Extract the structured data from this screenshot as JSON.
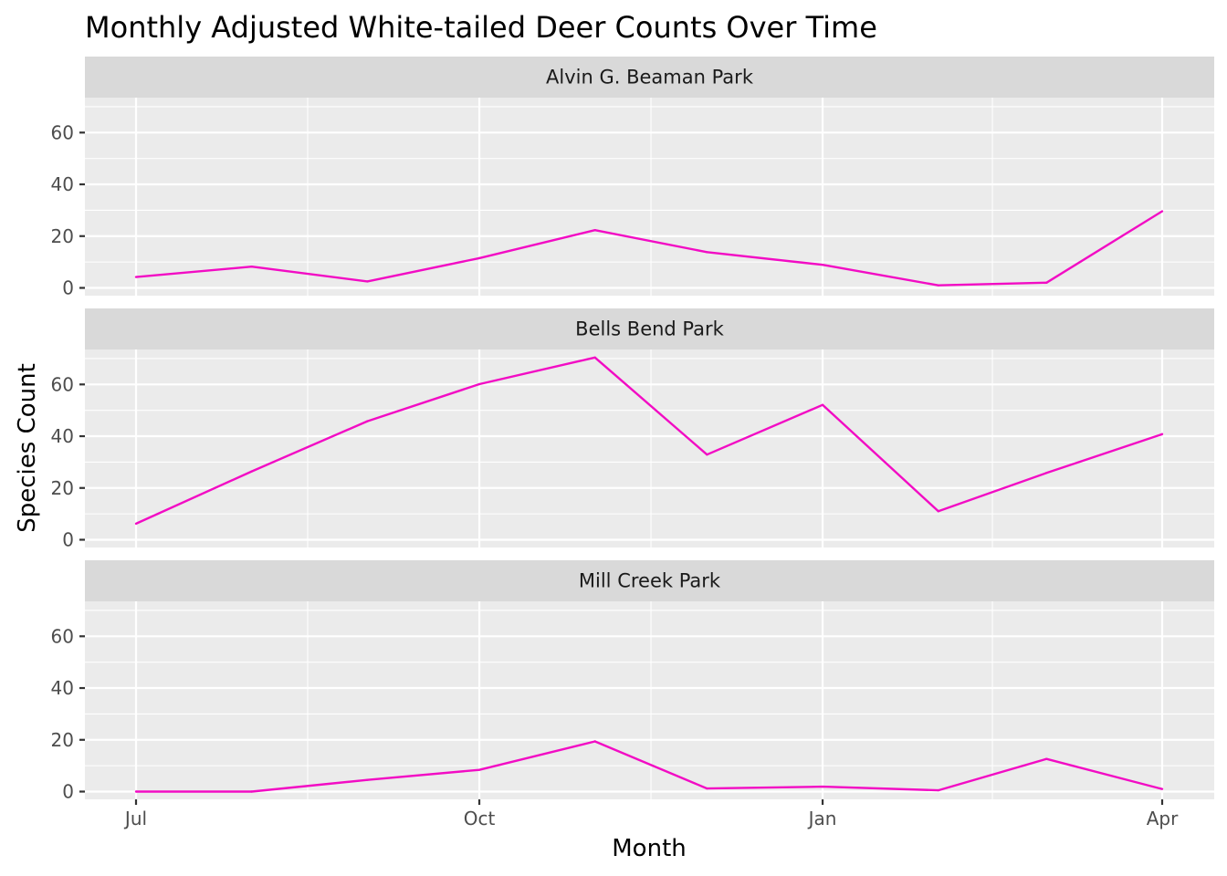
{
  "chart_data": {
    "type": "line",
    "title": "Monthly Adjusted White-tailed Deer Counts Over Time",
    "xlabel": "Month",
    "ylabel": "Species Count",
    "x": [
      "2023-07",
      "2023-08",
      "2023-09",
      "2023-10",
      "2023-11",
      "2023-12",
      "2024-01",
      "2024-02",
      "2024-03",
      "2024-04"
    ],
    "x_ticks": [
      "Jul",
      "Oct",
      "Jan",
      "Apr"
    ],
    "y_ticks": [
      0,
      20,
      40,
      60
    ],
    "ylim": [
      -3,
      73.5
    ],
    "grid": true,
    "line_color": "#f20cc4",
    "panel_background": "#ebebeb",
    "strip_background": "#d9d9d9",
    "facets": [
      {
        "name": "Alvin G. Beaman Park",
        "values": [
          4.2,
          8.2,
          2.5,
          11.5,
          22.3,
          13.8,
          8.9,
          1.0,
          2.0,
          29.6
        ]
      },
      {
        "name": "Bells Bend Park",
        "values": [
          6.2,
          26.4,
          45.8,
          60.1,
          70.4,
          32.9,
          52.1,
          11.0,
          25.8,
          40.8
        ]
      },
      {
        "name": "Mill Creek Park",
        "values": [
          0.0,
          0.0,
          4.5,
          8.4,
          19.4,
          1.2,
          1.9,
          0.5,
          12.6,
          1.0
        ]
      }
    ]
  }
}
